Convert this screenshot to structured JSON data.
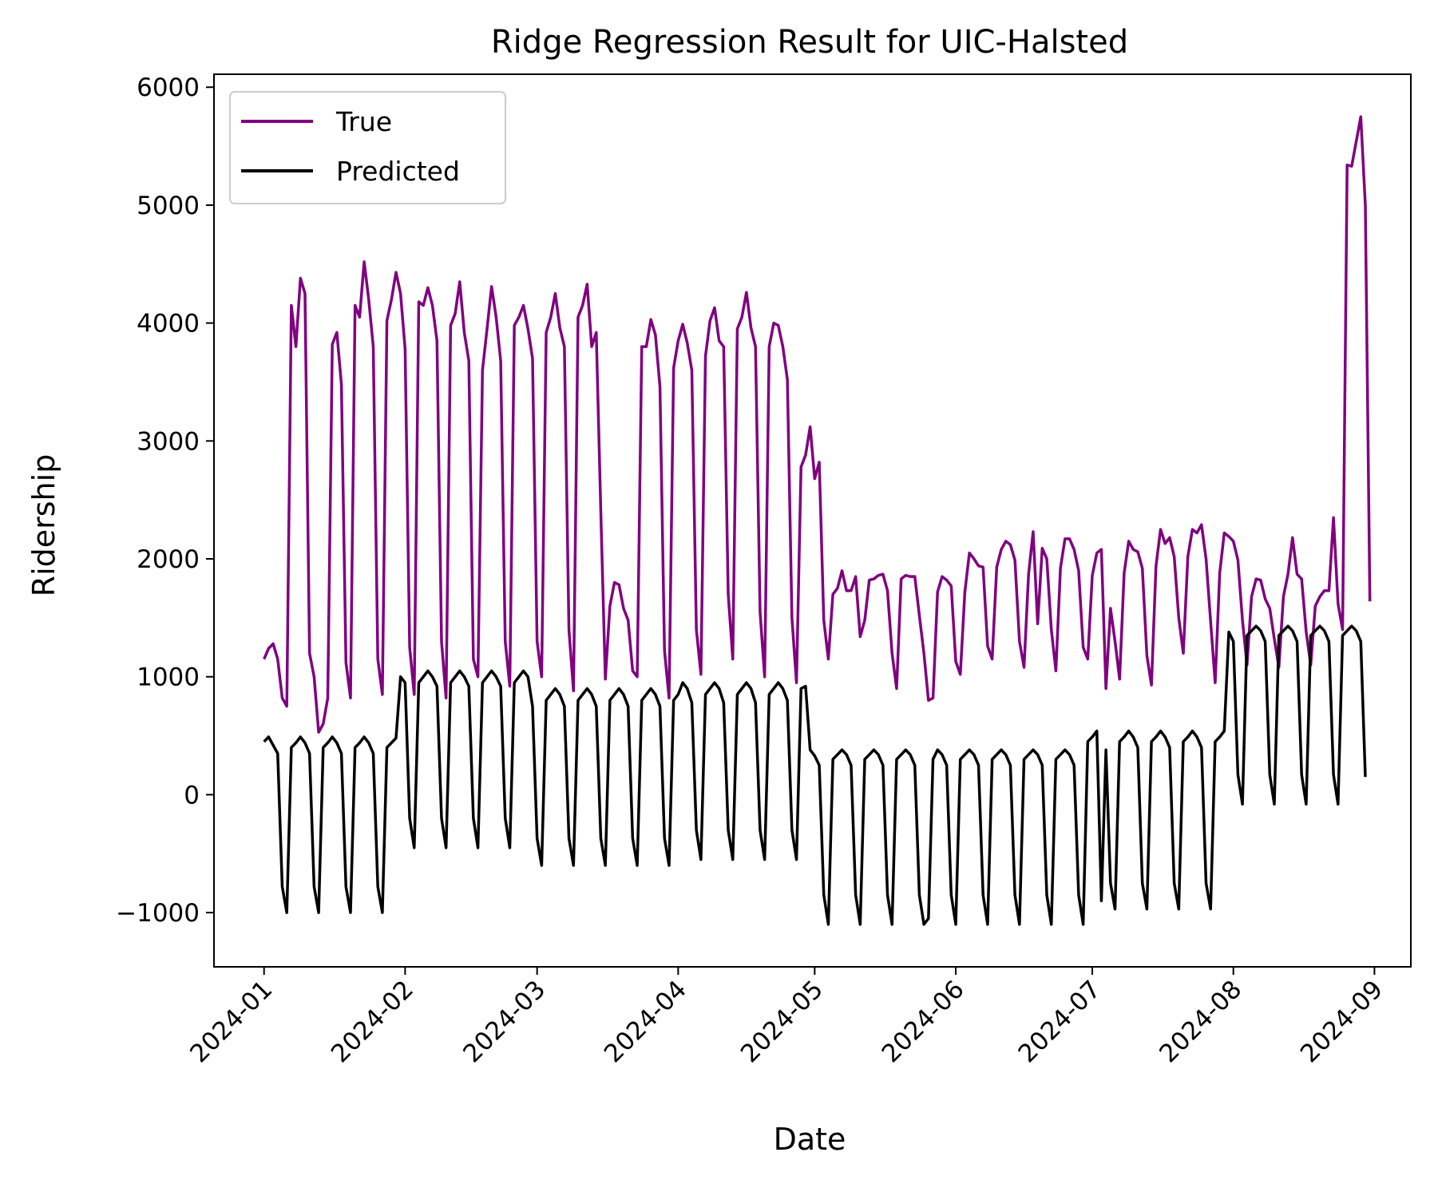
{
  "chart_data": {
    "type": "line",
    "title": "Ridge Regression Result for UIC-Halsted",
    "xlabel": "Date",
    "ylabel": "Ridership",
    "x_start": "2024-01-01",
    "x_end": "2024-08-31",
    "xlim": [
      "2023-12-21",
      "2024-09-09"
    ],
    "ylim": [
      -1460,
      6110
    ],
    "xticks": [
      {
        "date": "2024-01-01",
        "label": "2024-01"
      },
      {
        "date": "2024-02-01",
        "label": "2024-02"
      },
      {
        "date": "2024-03-01",
        "label": "2024-03"
      },
      {
        "date": "2024-04-01",
        "label": "2024-04"
      },
      {
        "date": "2024-05-01",
        "label": "2024-05"
      },
      {
        "date": "2024-06-01",
        "label": "2024-06"
      },
      {
        "date": "2024-07-01",
        "label": "2024-07"
      },
      {
        "date": "2024-08-01",
        "label": "2024-08"
      },
      {
        "date": "2024-09-01",
        "label": "2024-09"
      }
    ],
    "yticks": [
      {
        "value": -1000,
        "label": "−1000"
      },
      {
        "value": 0,
        "label": "0"
      },
      {
        "value": 1000,
        "label": "1000"
      },
      {
        "value": 2000,
        "label": "2000"
      },
      {
        "value": 3000,
        "label": "3000"
      },
      {
        "value": 4000,
        "label": "4000"
      },
      {
        "value": 5000,
        "label": "5000"
      },
      {
        "value": 6000,
        "label": "6000"
      }
    ],
    "grid": false,
    "legend_position": "top-left",
    "series": [
      {
        "name": "True",
        "color": "#800080",
        "values": [
          1150,
          1240,
          1280,
          1150,
          820,
          750,
          4150,
          3800,
          4380,
          4250,
          1200,
          1000,
          530,
          600,
          820,
          3820,
          3920,
          3480,
          1120,
          820,
          4150,
          4050,
          4520,
          4200,
          3800,
          1150,
          850,
          4020,
          4200,
          4430,
          4250,
          3780,
          1250,
          850,
          4180,
          4150,
          4300,
          4150,
          3850,
          1300,
          820,
          3980,
          4080,
          4350,
          3920,
          3680,
          1150,
          1000,
          3600,
          3950,
          4310,
          4050,
          3680,
          1300,
          920,
          3980,
          4050,
          4150,
          3950,
          3700,
          1300,
          1000,
          3920,
          4050,
          4250,
          3960,
          3800,
          1400,
          880,
          4050,
          4150,
          4330,
          3800,
          3920,
          2400,
          980,
          1600,
          1800,
          1780,
          1580,
          1480,
          1050,
          1000,
          3800,
          3800,
          4030,
          3900,
          3460,
          1220,
          820,
          3620,
          3850,
          3990,
          3830,
          3600,
          1400,
          1020,
          3720,
          4020,
          4130,
          3850,
          3800,
          1700,
          1150,
          3950,
          4050,
          4260,
          3960,
          3800,
          1550,
          1000,
          3800,
          4000,
          3980,
          3800,
          3520,
          1500,
          950,
          2780,
          2880,
          3120,
          2680,
          2820,
          1480,
          1150,
          1700,
          1750,
          1900,
          1730,
          1730,
          1850,
          1340,
          1480,
          1820,
          1830,
          1860,
          1870,
          1730,
          1200,
          900,
          1830,
          1860,
          1850,
          1850,
          1520,
          1200,
          800,
          820,
          1720,
          1850,
          1820,
          1770,
          1130,
          1020,
          1720,
          2050,
          2000,
          1940,
          1930,
          1260,
          1150,
          1930,
          2080,
          2150,
          2120,
          1990,
          1300,
          1080,
          1870,
          2230,
          1450,
          2090,
          2000,
          1400,
          1050,
          1920,
          2170,
          2170,
          2080,
          1900,
          1250,
          1150,
          1860,
          2050,
          2080,
          900,
          1580,
          1300,
          980,
          1880,
          2150,
          2080,
          2060,
          1920,
          1180,
          930,
          1940,
          2250,
          2130,
          2180,
          2020,
          1500,
          1200,
          2020,
          2250,
          2220,
          2290,
          2000,
          1470,
          950,
          1880,
          2220,
          2190,
          2150,
          1990,
          1480,
          1100,
          1680,
          1830,
          1820,
          1660,
          1580,
          1320,
          1080,
          1680,
          1870,
          2180,
          1870,
          1830,
          1380,
          1100,
          1600,
          1680,
          1730,
          1730,
          2350,
          1620,
          1400,
          5340,
          5330,
          5540,
          5750,
          5000,
          1640
        ]
      },
      {
        "name": "Predicted",
        "color": "#000000",
        "values": [
          450,
          490,
          420,
          350,
          -780,
          -1000,
          400,
          440,
          490,
          440,
          350,
          -780,
          -1000,
          400,
          440,
          490,
          440,
          350,
          -780,
          -1000,
          400,
          440,
          490,
          440,
          350,
          -780,
          -1000,
          400,
          440,
          480,
          1000,
          950,
          -200,
          -450,
          950,
          1000,
          1050,
          1000,
          920,
          -200,
          -450,
          950,
          1000,
          1050,
          1000,
          920,
          -200,
          -450,
          950,
          1000,
          1050,
          1000,
          920,
          -200,
          -450,
          950,
          1000,
          1050,
          1000,
          750,
          -370,
          -600,
          800,
          850,
          900,
          850,
          750,
          -370,
          -600,
          800,
          850,
          900,
          850,
          750,
          -370,
          -600,
          800,
          850,
          900,
          850,
          750,
          -370,
          -600,
          800,
          850,
          900,
          850,
          750,
          -370,
          -600,
          800,
          850,
          950,
          900,
          780,
          -300,
          -550,
          850,
          900,
          950,
          900,
          780,
          -300,
          -550,
          850,
          900,
          950,
          900,
          780,
          -300,
          -550,
          850,
          900,
          950,
          900,
          800,
          -300,
          -550,
          900,
          920,
          380,
          330,
          250,
          -850,
          -1100,
          300,
          340,
          380,
          340,
          250,
          -850,
          -1100,
          300,
          340,
          380,
          340,
          250,
          -850,
          -1100,
          300,
          340,
          380,
          340,
          250,
          -850,
          -1100,
          -1050,
          300,
          380,
          340,
          250,
          -850,
          -1100,
          300,
          340,
          380,
          340,
          250,
          -850,
          -1100,
          300,
          340,
          380,
          340,
          250,
          -850,
          -1100,
          300,
          340,
          380,
          340,
          250,
          -850,
          -1100,
          300,
          340,
          380,
          340,
          250,
          -850,
          -1100,
          450,
          490,
          540,
          -900,
          380,
          -750,
          -970,
          450,
          490,
          540,
          490,
          400,
          -750,
          -970,
          450,
          490,
          540,
          490,
          400,
          -750,
          -970,
          450,
          490,
          540,
          490,
          400,
          -750,
          -970,
          450,
          490,
          540,
          1380,
          1300,
          170,
          -80,
          1350,
          1390,
          1430,
          1390,
          1300,
          170,
          -80,
          1350,
          1390,
          1430,
          1390,
          1300,
          170,
          -80,
          1350,
          1390,
          1430,
          1390,
          1300,
          170,
          -80,
          1350,
          1390,
          1430,
          1390,
          1300,
          150
        ]
      }
    ]
  }
}
